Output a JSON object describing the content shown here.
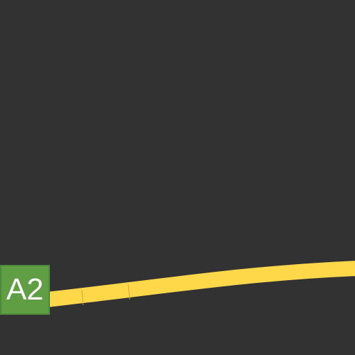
{
  "map": {
    "background_color": "#323232",
    "road": {
      "name": "A2",
      "color": "#ffd84a",
      "segment_line_color": "#c9a93a"
    },
    "shield": {
      "label": "A2",
      "color": "#5f9e43",
      "border_color": "#4d8a3d",
      "text_color": "#ffffff"
    }
  }
}
